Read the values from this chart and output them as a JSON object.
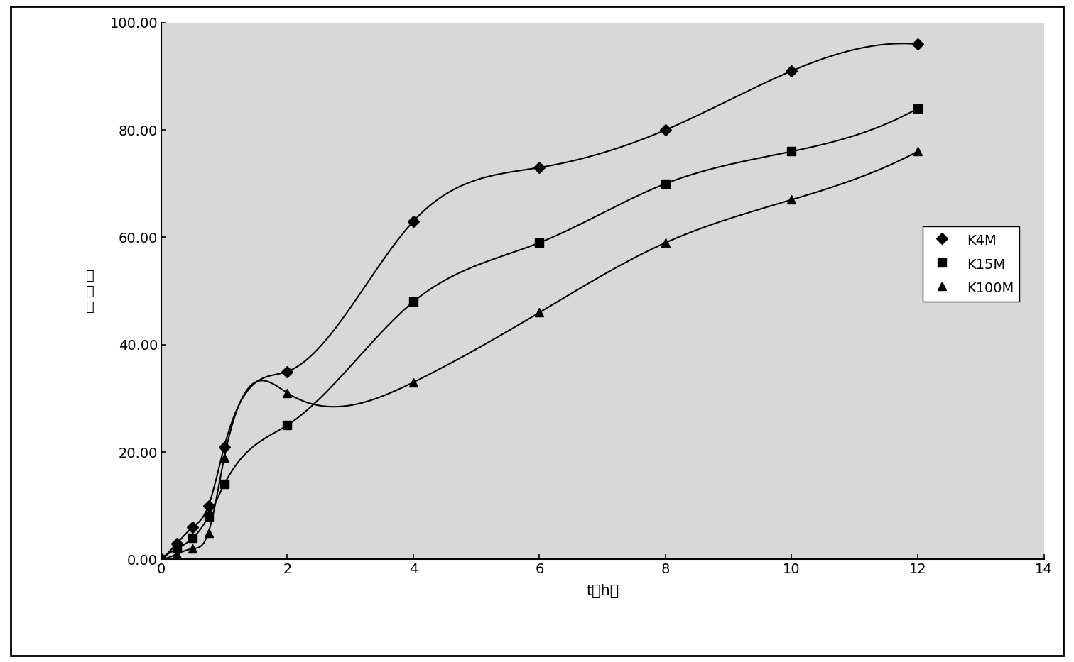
{
  "series": [
    {
      "label": "K4M",
      "x": [
        0,
        0.25,
        0.5,
        0.75,
        1,
        2,
        4,
        6,
        8,
        10,
        12
      ],
      "y": [
        0,
        3,
        6,
        10,
        21,
        35,
        63,
        73,
        80,
        91,
        96
      ],
      "marker": "D",
      "color": "#000000"
    },
    {
      "label": "K15M",
      "x": [
        0,
        0.25,
        0.5,
        0.75,
        1,
        2,
        4,
        6,
        8,
        10,
        12
      ],
      "y": [
        0,
        2,
        4,
        8,
        14,
        25,
        48,
        59,
        70,
        76,
        84
      ],
      "marker": "s",
      "color": "#000000"
    },
    {
      "label": "K100M",
      "x": [
        0,
        0.25,
        0.5,
        0.75,
        1,
        2,
        4,
        6,
        8,
        10,
        12
      ],
      "y": [
        0,
        1,
        2,
        5,
        19,
        31,
        33,
        46,
        59,
        67,
        76
      ],
      "marker": "^",
      "color": "#000000"
    }
  ],
  "xlabel": "t（h）",
  "ylabel_chars": [
    "溶",
    "出",
    "度"
  ],
  "xlim": [
    0,
    14
  ],
  "ylim": [
    0,
    100
  ],
  "xticks": [
    0,
    2,
    4,
    6,
    8,
    10,
    12,
    14
  ],
  "yticks": [
    0.0,
    20.0,
    40.0,
    60.0,
    80.0,
    100.0
  ],
  "ytick_labels": [
    "0.00",
    "20.00",
    "40.00",
    "60.00",
    "80.00",
    "100.00"
  ],
  "plot_bg_color": "#d8d8d8",
  "fig_bg_color": "#ffffff",
  "outer_border_color": "#000000",
  "inner_border_color": "#000000",
  "legend_loc": "center right",
  "figsize": [
    15.12,
    9.33
  ],
  "dpi": 100
}
